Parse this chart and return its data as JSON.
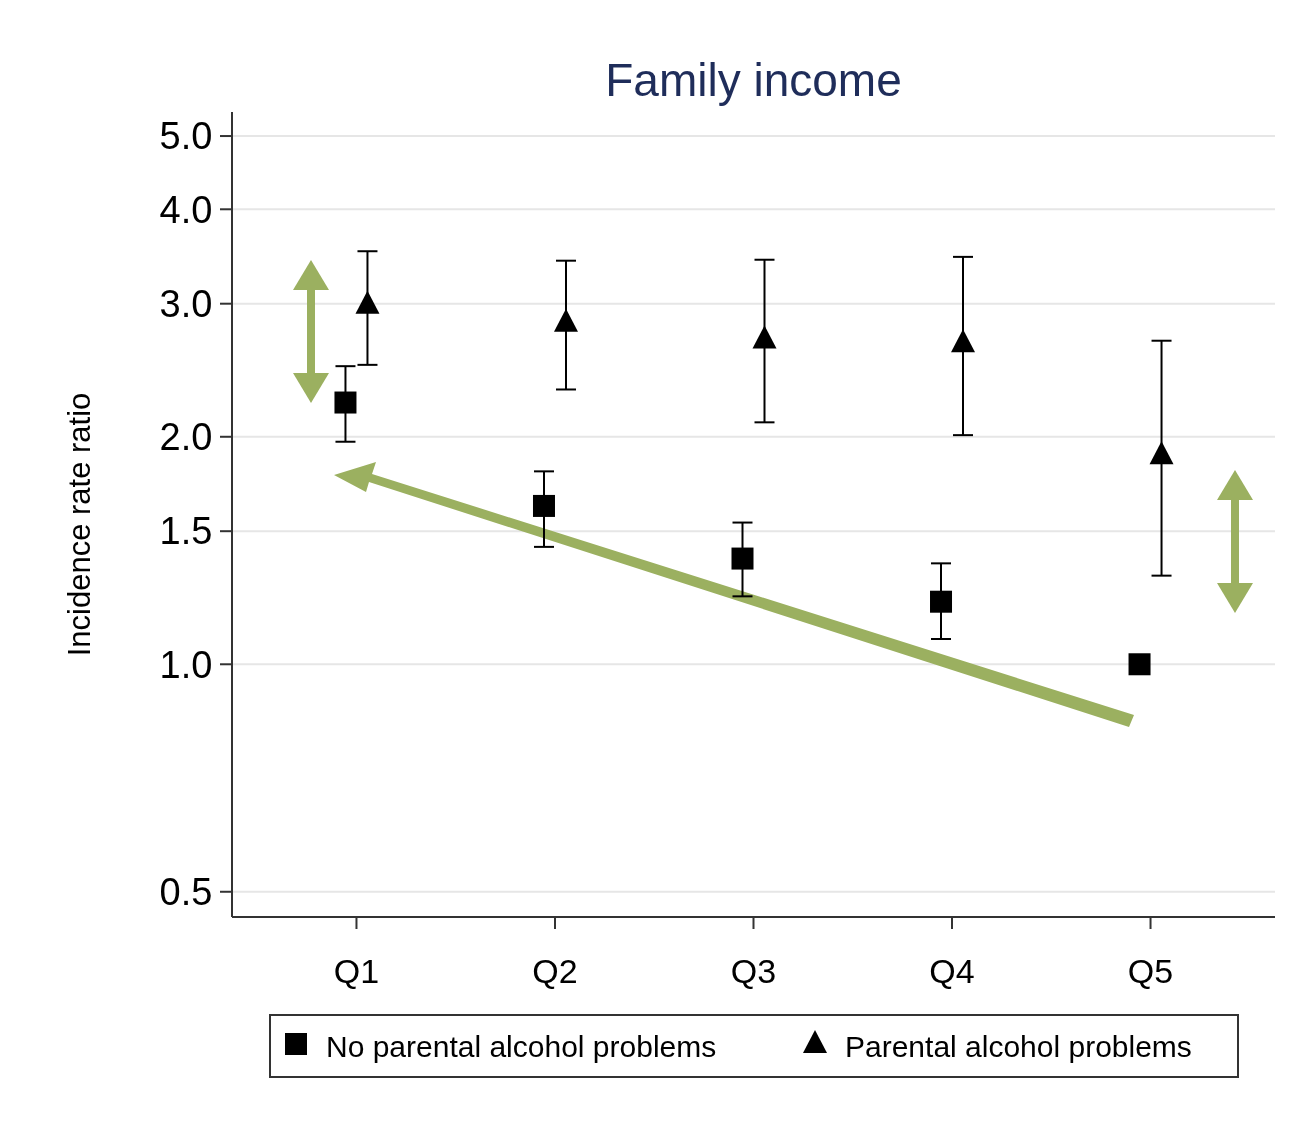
{
  "chart_data": {
    "type": "scatter",
    "title": "Family income",
    "ylabel": "Incidence rate ratio",
    "categories": [
      "Q1",
      "Q2",
      "Q3",
      "Q4",
      "Q5"
    ],
    "log": "y",
    "ylim": [
      0.463,
      5.38
    ],
    "yticks": [
      {
        "value": 0.5,
        "label": "0.5"
      },
      {
        "value": 1,
        "label": "1.0"
      },
      {
        "value": 1.5,
        "label": "1.5"
      },
      {
        "value": 2,
        "label": "2.0"
      },
      {
        "value": 3,
        "label": "3.0"
      },
      {
        "value": 4,
        "label": "4.0"
      },
      {
        "value": 5,
        "label": "5.0"
      }
    ],
    "grid": "y",
    "legend": "bottom",
    "series": [
      {
        "name": "No parental alcohol problems",
        "color": "#000000",
        "marker": "square",
        "values": [
          2.22,
          1.62,
          1.38,
          1.21,
          1.0
        ],
        "errors": [
          [
            1.97,
            2.48
          ],
          [
            1.43,
            1.8
          ],
          [
            1.23,
            1.54
          ],
          [
            1.08,
            1.36
          ],
          null
        ]
      },
      {
        "name": "Parental alcohol problems",
        "color": "#000000",
        "marker": "triangle",
        "values": [
          2.99,
          2.83,
          2.69,
          2.66,
          1.89
        ],
        "errors": [
          [
            2.49,
            3.52
          ],
          [
            2.31,
            3.42
          ],
          [
            2.09,
            3.43
          ],
          [
            2.01,
            3.46
          ],
          [
            1.31,
            2.68
          ]
        ]
      }
    ]
  }
}
